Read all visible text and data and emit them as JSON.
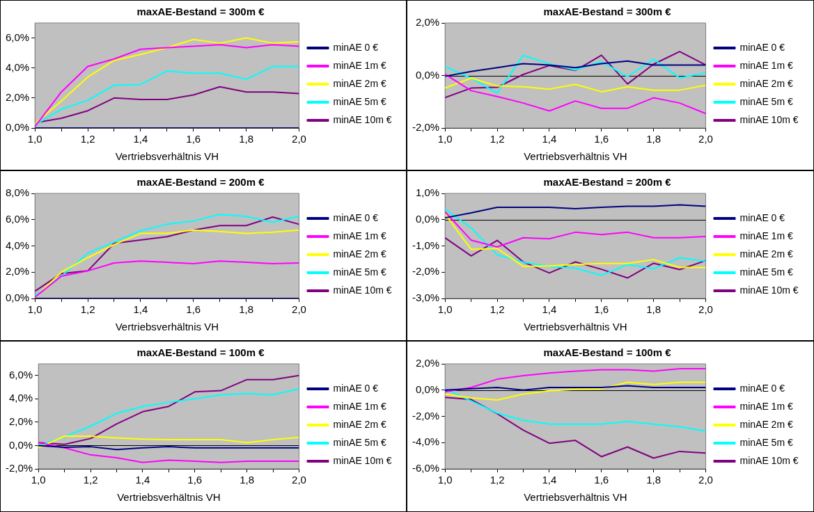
{
  "chart_data": [
    {
      "type": "line",
      "title": "maxAE-Bestand = 300m €",
      "xlabel": "Vertriebsverhältnis VH",
      "legend": "right",
      "x": [
        1.0,
        1.1,
        1.2,
        1.3,
        1.4,
        1.5,
        1.6,
        1.7,
        1.8,
        1.9,
        2.0
      ],
      "xlim": [
        1,
        2
      ],
      "xticks": [
        {
          "value": 1,
          "label": "1,0"
        },
        {
          "value": 1.1,
          "label": null
        },
        {
          "value": 1.2,
          "label": "1,2"
        },
        {
          "value": 1.3,
          "label": null
        },
        {
          "value": 1.4,
          "label": "1,4"
        },
        {
          "value": 1.5,
          "label": null
        },
        {
          "value": 1.6,
          "label": "1,6"
        },
        {
          "value": 1.7,
          "label": null
        },
        {
          "value": 1.8,
          "label": "1,8"
        },
        {
          "value": 1.9,
          "label": null
        },
        {
          "value": 2,
          "label": "2,0"
        }
      ],
      "ylim": [
        0,
        7
      ],
      "yticks": [
        {
          "value": 0,
          "label": "0,0%"
        },
        {
          "value": 2,
          "label": "2,0%"
        },
        {
          "value": 4,
          "label": "4,0%"
        },
        {
          "value": 6,
          "label": "6,0%"
        }
      ],
      "series": [
        {
          "name": "minAE 0 €",
          "color": "#000080",
          "values": [
            0,
            0,
            0,
            0,
            0,
            0,
            0,
            0,
            0,
            0,
            0
          ]
        },
        {
          "name": "minAE 1m €",
          "color": "#ff00ff",
          "values": [
            0.1,
            2.4,
            4.1,
            4.6,
            5.25,
            5.35,
            5.45,
            5.55,
            5.35,
            5.55,
            5.45
          ]
        },
        {
          "name": "minAE 2m €",
          "color": "#ffff00",
          "values": [
            0.3,
            1.8,
            3.4,
            4.5,
            4.9,
            5.35,
            5.9,
            5.65,
            6.0,
            5.65,
            5.75
          ]
        },
        {
          "name": "minAE 5m €",
          "color": "#00ffff",
          "values": [
            0.2,
            1.25,
            1.85,
            2.85,
            2.9,
            3.8,
            3.65,
            3.65,
            3.25,
            4.1,
            4.1
          ]
        },
        {
          "name": "minAE 10m €",
          "color": "#800080",
          "values": [
            0.35,
            0.65,
            1.15,
            2.0,
            1.9,
            1.9,
            2.2,
            2.75,
            2.4,
            2.4,
            2.3
          ]
        }
      ]
    },
    {
      "type": "line",
      "title": "maxAE-Bestand = 300m €",
      "xlabel": "Vertriebsverhältnis VH",
      "legend": "right",
      "x": [
        1.0,
        1.1,
        1.2,
        1.3,
        1.4,
        1.5,
        1.6,
        1.7,
        1.8,
        1.9,
        2.0
      ],
      "xlim": [
        1,
        2
      ],
      "xticks": [
        {
          "value": 1,
          "label": "1,0"
        },
        {
          "value": 1.1,
          "label": null
        },
        {
          "value": 1.2,
          "label": "1,2"
        },
        {
          "value": 1.3,
          "label": null
        },
        {
          "value": 1.4,
          "label": "1,4"
        },
        {
          "value": 1.5,
          "label": null
        },
        {
          "value": 1.6,
          "label": "1,6"
        },
        {
          "value": 1.7,
          "label": null
        },
        {
          "value": 1.8,
          "label": "1,8"
        },
        {
          "value": 1.9,
          "label": null
        },
        {
          "value": 2,
          "label": "2,0"
        }
      ],
      "ylim": [
        -2,
        2
      ],
      "yticks": [
        {
          "value": -2,
          "label": "-2,0%"
        },
        {
          "value": 0,
          "label": "0,0%"
        },
        {
          "value": 2,
          "label": "2,0%"
        }
      ],
      "series": [
        {
          "name": "minAE 0 €",
          "color": "#000080",
          "values": [
            -0.03,
            0.15,
            0.3,
            0.45,
            0.4,
            0.3,
            0.45,
            0.55,
            0.4,
            0.4,
            0.4
          ]
        },
        {
          "name": "minAE 1m €",
          "color": "#ff00ff",
          "values": [
            0.05,
            -0.58,
            -0.8,
            -1.05,
            -1.35,
            -0.97,
            -1.25,
            -1.25,
            -0.85,
            -1.05,
            -1.45
          ]
        },
        {
          "name": "minAE 2m €",
          "color": "#ffff00",
          "values": [
            -0.48,
            -0.1,
            -0.4,
            -0.43,
            -0.52,
            -0.34,
            -0.62,
            -0.43,
            -0.56,
            -0.56,
            -0.37
          ]
        },
        {
          "name": "minAE 5m €",
          "color": "#00ffff",
          "values": [
            0.34,
            -0.1,
            -0.67,
            0.77,
            0.44,
            0.21,
            0.53,
            -0.04,
            0.62,
            -0.09,
            0.1
          ]
        },
        {
          "name": "minAE 10m €",
          "color": "#800080",
          "values": [
            -0.84,
            -0.48,
            -0.45,
            0.04,
            0.38,
            0.19,
            0.77,
            -0.32,
            0.43,
            0.91,
            0.4
          ]
        }
      ]
    },
    {
      "type": "line",
      "title": "maxAE-Bestand = 200m €",
      "xlabel": "Vertriebsverhältnis VH",
      "legend": "right",
      "x": [
        1.0,
        1.1,
        1.2,
        1.3,
        1.4,
        1.5,
        1.6,
        1.7,
        1.8,
        1.9,
        2.0
      ],
      "xlim": [
        1,
        2
      ],
      "xticks": [
        {
          "value": 1,
          "label": "1,0"
        },
        {
          "value": 1.1,
          "label": null
        },
        {
          "value": 1.2,
          "label": "1,2"
        },
        {
          "value": 1.3,
          "label": null
        },
        {
          "value": 1.4,
          "label": "1,4"
        },
        {
          "value": 1.5,
          "label": null
        },
        {
          "value": 1.6,
          "label": "1,6"
        },
        {
          "value": 1.7,
          "label": null
        },
        {
          "value": 1.8,
          "label": "1,8"
        },
        {
          "value": 1.9,
          "label": null
        },
        {
          "value": 2,
          "label": "2,0"
        }
      ],
      "ylim": [
        0,
        8
      ],
      "yticks": [
        {
          "value": 0,
          "label": "0,0%"
        },
        {
          "value": 2,
          "label": "2,0%"
        },
        {
          "value": 4,
          "label": "4,0%"
        },
        {
          "value": 6,
          "label": "6,0%"
        },
        {
          "value": 8,
          "label": "8,0%"
        }
      ],
      "series": [
        {
          "name": "minAE 0 €",
          "color": "#000080",
          "values": [
            0,
            0,
            0,
            0,
            0,
            0,
            0,
            0,
            0,
            0,
            0
          ]
        },
        {
          "name": "minAE 1m €",
          "color": "#ff00ff",
          "values": [
            0.1,
            1.7,
            2.1,
            2.7,
            2.85,
            2.75,
            2.65,
            2.85,
            2.75,
            2.65,
            2.7
          ]
        },
        {
          "name": "minAE 2m €",
          "color": "#ffff00",
          "values": [
            0.05,
            2.0,
            3.1,
            4.1,
            4.95,
            4.95,
            5.2,
            5.1,
            4.95,
            5.05,
            5.2
          ]
        },
        {
          "name": "minAE 5m €",
          "color": "#00ffff",
          "values": [
            0.2,
            1.7,
            3.45,
            4.3,
            5.15,
            5.65,
            5.9,
            6.4,
            6.25,
            5.8,
            6.25
          ]
        },
        {
          "name": "minAE 10m €",
          "color": "#800080",
          "values": [
            0.55,
            1.9,
            2.1,
            4.2,
            4.45,
            4.7,
            5.2,
            5.55,
            5.55,
            6.2,
            5.65
          ]
        }
      ]
    },
    {
      "type": "line",
      "title": "maxAE-Bestand = 200m €",
      "xlabel": "Vertriebsverhältnis VH",
      "legend": "right",
      "x": [
        1.0,
        1.1,
        1.2,
        1.3,
        1.4,
        1.5,
        1.6,
        1.7,
        1.8,
        1.9,
        2.0
      ],
      "xlim": [
        1,
        2
      ],
      "xticks": [
        {
          "value": 1,
          "label": "1,0"
        },
        {
          "value": 1.1,
          "label": null
        },
        {
          "value": 1.2,
          "label": "1,2"
        },
        {
          "value": 1.3,
          "label": null
        },
        {
          "value": 1.4,
          "label": "1,4"
        },
        {
          "value": 1.5,
          "label": null
        },
        {
          "value": 1.6,
          "label": "1,6"
        },
        {
          "value": 1.7,
          "label": null
        },
        {
          "value": 1.8,
          "label": "1,8"
        },
        {
          "value": 1.9,
          "label": null
        },
        {
          "value": 2,
          "label": "2,0"
        }
      ],
      "ylim": [
        -3,
        1
      ],
      "yticks": [
        {
          "value": -3,
          "label": "-3,0%"
        },
        {
          "value": -2,
          "label": "-2,0%"
        },
        {
          "value": -1,
          "label": "-1,0%"
        },
        {
          "value": 0,
          "label": "0,0%"
        },
        {
          "value": 1,
          "label": "1,0%"
        }
      ],
      "series": [
        {
          "name": "minAE 0 €",
          "color": "#000080",
          "values": [
            0.07,
            0.26,
            0.47,
            0.47,
            0.47,
            0.42,
            0.47,
            0.51,
            0.51,
            0.56,
            0.51
          ]
        },
        {
          "name": "minAE 1m €",
          "color": "#ff00ff",
          "values": [
            0.3,
            -0.78,
            -1.04,
            -0.69,
            -0.73,
            -0.48,
            -0.57,
            -0.48,
            -0.69,
            -0.69,
            -0.64
          ]
        },
        {
          "name": "minAE 2m €",
          "color": "#ffff00",
          "values": [
            0.21,
            -1.13,
            -1.1,
            -1.78,
            -1.76,
            -1.71,
            -1.67,
            -1.67,
            -1.52,
            -1.82,
            -1.82
          ]
        },
        {
          "name": "minAE 5m €",
          "color": "#00ffff",
          "values": [
            0.4,
            -0.31,
            -1.34,
            -1.62,
            -1.78,
            -1.85,
            -2.12,
            -1.71,
            -1.87,
            -1.45,
            -1.59
          ]
        },
        {
          "name": "minAE 10m €",
          "color": "#800080",
          "values": [
            -0.69,
            -1.38,
            -0.79,
            -1.61,
            -2.03,
            -1.61,
            -1.89,
            -2.22,
            -1.66,
            -1.9,
            -1.56
          ]
        }
      ]
    },
    {
      "type": "line",
      "title": "maxAE-Bestand = 100m €",
      "xlabel": "Vertriebsverhältnis VH",
      "legend": "right",
      "x": [
        1.0,
        1.1,
        1.2,
        1.3,
        1.4,
        1.5,
        1.6,
        1.7,
        1.8,
        1.9,
        2.0
      ],
      "xlim": [
        1,
        2
      ],
      "xticks": [
        {
          "value": 1,
          "label": "1,0"
        },
        {
          "value": 1.1,
          "label": null
        },
        {
          "value": 1.2,
          "label": "1,2"
        },
        {
          "value": 1.3,
          "label": null
        },
        {
          "value": 1.4,
          "label": "1,4"
        },
        {
          "value": 1.5,
          "label": null
        },
        {
          "value": 1.6,
          "label": "1,6"
        },
        {
          "value": 1.7,
          "label": null
        },
        {
          "value": 1.8,
          "label": "1,8"
        },
        {
          "value": 1.9,
          "label": null
        },
        {
          "value": 2,
          "label": "2,0"
        }
      ],
      "ylim": [
        -2,
        7
      ],
      "yticks": [
        {
          "value": -2,
          "label": "-2,0%"
        },
        {
          "value": 0,
          "label": "0,0%"
        },
        {
          "value": 2,
          "label": "2,0%"
        },
        {
          "value": 4,
          "label": "4,0%"
        },
        {
          "value": 6,
          "label": "6,0%"
        }
      ],
      "series": [
        {
          "name": "minAE 0 €",
          "color": "#000080",
          "values": [
            0,
            -0.15,
            -0.1,
            -0.35,
            -0.2,
            -0.1,
            -0.2,
            -0.2,
            -0.2,
            -0.2,
            -0.2
          ]
        },
        {
          "name": "minAE 1m €",
          "color": "#ff00ff",
          "values": [
            0.25,
            -0.2,
            -0.8,
            -1.05,
            -1.45,
            -1.25,
            -1.35,
            -1.45,
            -1.35,
            -1.35,
            -1.35
          ]
        },
        {
          "name": "minAE 2m €",
          "color": "#ffff00",
          "values": [
            -0.2,
            0.8,
            0.8,
            0.65,
            0.55,
            0.5,
            0.5,
            0.5,
            0.25,
            0.5,
            0.7
          ]
        },
        {
          "name": "minAE 5m €",
          "color": "#00ffff",
          "values": [
            0,
            0.75,
            1.65,
            2.75,
            3.35,
            3.7,
            4.0,
            4.35,
            4.45,
            4.35,
            4.85
          ]
        },
        {
          "name": "minAE 10m €",
          "color": "#800080",
          "values": [
            0.25,
            0.1,
            0.6,
            1.85,
            2.9,
            3.35,
            4.6,
            4.7,
            5.65,
            5.65,
            6.0
          ]
        }
      ]
    },
    {
      "type": "line",
      "title": "maxAE-Bestand = 100m €",
      "xlabel": "Vertriebsverhältnis VH",
      "legend": "right",
      "x": [
        1.0,
        1.1,
        1.2,
        1.3,
        1.4,
        1.5,
        1.6,
        1.7,
        1.8,
        1.9,
        2.0
      ],
      "xlim": [
        1,
        2
      ],
      "xticks": [
        {
          "value": 1,
          "label": "1,0"
        },
        {
          "value": 1.1,
          "label": null
        },
        {
          "value": 1.2,
          "label": "1,2"
        },
        {
          "value": 1.3,
          "label": null
        },
        {
          "value": 1.4,
          "label": "1,4"
        },
        {
          "value": 1.5,
          "label": null
        },
        {
          "value": 1.6,
          "label": "1,6"
        },
        {
          "value": 1.7,
          "label": null
        },
        {
          "value": 1.8,
          "label": "1,8"
        },
        {
          "value": 1.9,
          "label": null
        },
        {
          "value": 2,
          "label": "2,0"
        }
      ],
      "ylim": [
        -6,
        2
      ],
      "yticks": [
        {
          "value": -6,
          "label": "-6,0%"
        },
        {
          "value": -4,
          "label": "-4,0%"
        },
        {
          "value": -2,
          "label": "-2,0%"
        },
        {
          "value": 0,
          "label": "0,0%"
        },
        {
          "value": 2,
          "label": "2,0%"
        }
      ],
      "series": [
        {
          "name": "minAE 0 €",
          "color": "#000080",
          "values": [
            0,
            0.1,
            0.2,
            0,
            0.2,
            0.2,
            0.2,
            0.33,
            0.2,
            0.2,
            0.2
          ]
        },
        {
          "name": "minAE 1m €",
          "color": "#ff00ff",
          "values": [
            -0.13,
            0.2,
            0.83,
            1.1,
            1.3,
            1.45,
            1.55,
            1.55,
            1.45,
            1.63,
            1.63
          ]
        },
        {
          "name": "minAE 2m €",
          "color": "#ffff00",
          "values": [
            -0.31,
            -0.6,
            -0.75,
            -0.31,
            -0.05,
            0.05,
            0.1,
            0.6,
            0.42,
            0.6,
            0.6
          ]
        },
        {
          "name": "minAE 5m €",
          "color": "#00ffff",
          "values": [
            0.1,
            -0.83,
            -1.75,
            -2.3,
            -2.6,
            -2.6,
            -2.6,
            -2.4,
            -2.6,
            -2.8,
            -3.13
          ]
        },
        {
          "name": "minAE 10m €",
          "color": "#800080",
          "values": [
            -0.55,
            -0.72,
            -1.8,
            -3.05,
            -4.05,
            -3.83,
            -5.07,
            -4.33,
            -5.18,
            -4.67,
            -4.8
          ]
        }
      ]
    }
  ]
}
